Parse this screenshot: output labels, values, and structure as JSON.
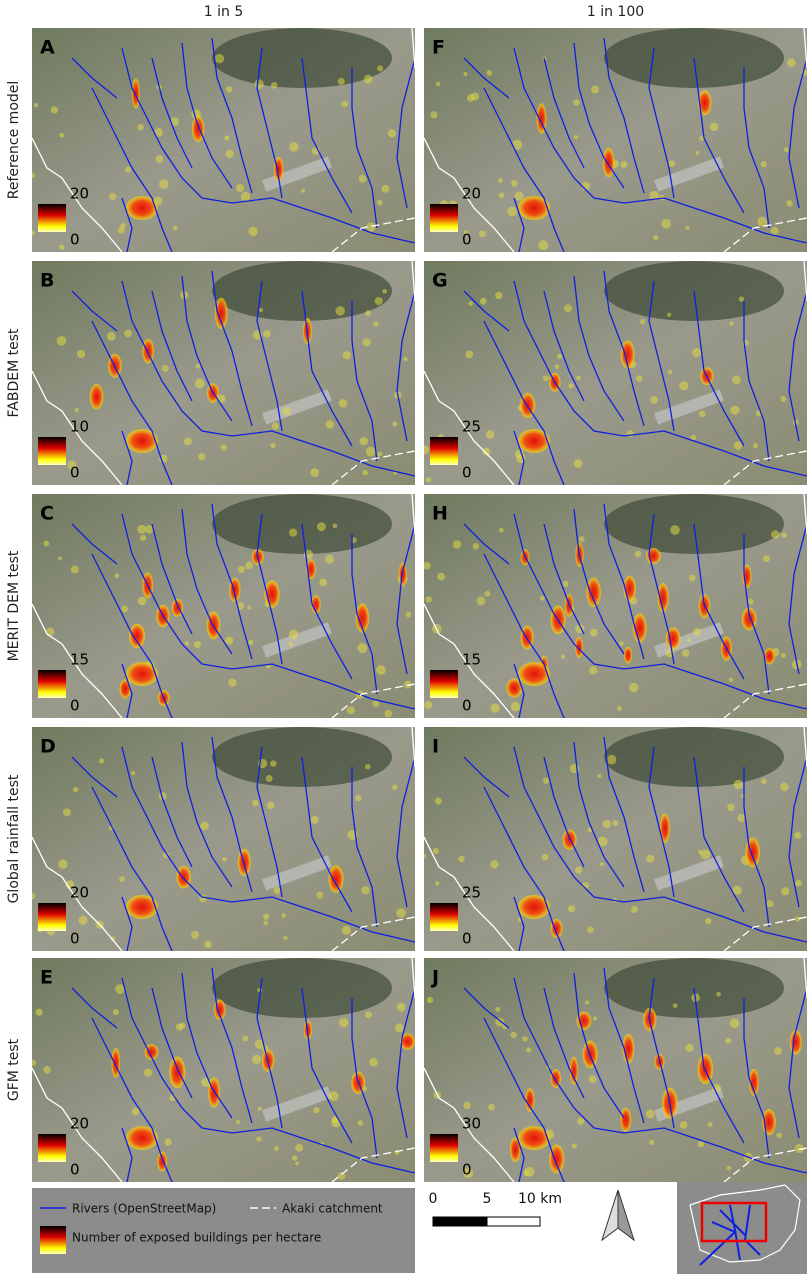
{
  "columns": [
    "1 in 5",
    "1 in 100"
  ],
  "rows": [
    {
      "label": "Reference model",
      "panels": [
        {
          "letter": "A",
          "legend_max": 20,
          "legend_min": 0
        },
        {
          "letter": "F",
          "legend_max": 20,
          "legend_min": 0
        }
      ]
    },
    {
      "label": "FABDEM test",
      "panels": [
        {
          "letter": "B",
          "legend_max": 10,
          "legend_min": 0
        },
        {
          "letter": "G",
          "legend_max": 25,
          "legend_min": 0
        }
      ]
    },
    {
      "label": "MERIT DEM test",
      "panels": [
        {
          "letter": "C",
          "legend_max": 15,
          "legend_min": 0
        },
        {
          "letter": "H",
          "legend_max": 15,
          "legend_min": 0
        }
      ]
    },
    {
      "label": "Global rainfall test",
      "panels": [
        {
          "letter": "D",
          "legend_max": 20,
          "legend_min": 0
        },
        {
          "letter": "I",
          "legend_max": 25,
          "legend_min": 0
        }
      ]
    },
    {
      "label": "GFM test",
      "panels": [
        {
          "letter": "E",
          "legend_max": 20,
          "legend_min": 0
        },
        {
          "letter": "J",
          "legend_max": 30,
          "legend_min": 0
        }
      ]
    }
  ],
  "legend": {
    "rivers": "Rivers (OpenStreetMap)",
    "catchment": "Akaki catchment",
    "exposure": "Number of exposed buildings per hectare"
  },
  "scale_bar": {
    "labels": [
      "0",
      "5",
      "10 km"
    ]
  }
}
